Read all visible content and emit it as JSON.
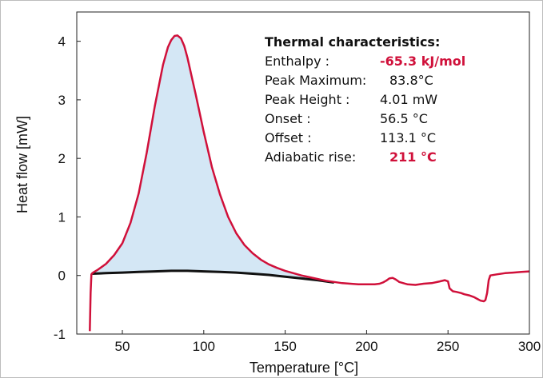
{
  "chart_data": {
    "type": "line",
    "title": "",
    "xlabel": "Temperature [°C]",
    "ylabel": "Heat flow [mW]",
    "xlim": [
      22,
      300
    ],
    "ylim": [
      -1,
      4.5
    ],
    "xticks": [
      50,
      100,
      150,
      200,
      250,
      300
    ],
    "yticks": [
      -1,
      0,
      1,
      2,
      3,
      4
    ],
    "grid": false,
    "colors": {
      "measured": "#d0103a",
      "baseline": "#111111",
      "fill": "#d4e7f5"
    },
    "series": [
      {
        "name": "",
        "role": "measured",
        "x": [
          30,
          30.5,
          31,
          32,
          35,
          40,
          45,
          50,
          55,
          60,
          65,
          70,
          75,
          78,
          80,
          82,
          83.8,
          86,
          88,
          90,
          95,
          100,
          105,
          110,
          115,
          120,
          125,
          130,
          135,
          140,
          145,
          150,
          155,
          160,
          165,
          170,
          175,
          180,
          185,
          190,
          195,
          200,
          205,
          208,
          210,
          212,
          214,
          216,
          218,
          220,
          225,
          230,
          235,
          240,
          245,
          248,
          250,
          251,
          253,
          255,
          258,
          260,
          263,
          266,
          268,
          270,
          272,
          273,
          274,
          275,
          276,
          280,
          285,
          290,
          295,
          300
        ],
        "y": [
          -0.95,
          -0.3,
          0.02,
          0.05,
          0.1,
          0.2,
          0.35,
          0.55,
          0.9,
          1.4,
          2.1,
          2.9,
          3.6,
          3.9,
          4.02,
          4.09,
          4.1,
          4.05,
          3.92,
          3.72,
          3.1,
          2.45,
          1.85,
          1.38,
          1.0,
          0.72,
          0.52,
          0.38,
          0.27,
          0.19,
          0.13,
          0.08,
          0.04,
          0.0,
          -0.03,
          -0.06,
          -0.09,
          -0.11,
          -0.13,
          -0.14,
          -0.15,
          -0.15,
          -0.15,
          -0.14,
          -0.12,
          -0.09,
          -0.05,
          -0.04,
          -0.07,
          -0.11,
          -0.15,
          -0.16,
          -0.14,
          -0.13,
          -0.1,
          -0.08,
          -0.1,
          -0.22,
          -0.27,
          -0.28,
          -0.3,
          -0.32,
          -0.34,
          -0.37,
          -0.4,
          -0.43,
          -0.44,
          -0.42,
          -0.3,
          -0.08,
          0.0,
          0.02,
          0.04,
          0.05,
          0.06,
          0.07
        ]
      },
      {
        "name": "",
        "role": "baseline",
        "x": [
          31,
          40,
          50,
          60,
          70,
          80,
          90,
          100,
          110,
          120,
          130,
          140,
          150,
          160,
          170,
          180
        ],
        "y": [
          0.03,
          0.04,
          0.05,
          0.06,
          0.07,
          0.08,
          0.08,
          0.07,
          0.06,
          0.05,
          0.03,
          0.01,
          -0.02,
          -0.05,
          -0.08,
          -0.12
        ]
      }
    ],
    "integrated_region": {
      "x_from": 31,
      "x_to": 180
    },
    "annotation": {
      "title": "Thermal characteristics:",
      "rows": [
        {
          "label": "Enthalpy :",
          "value": "-65.3 kJ/mol",
          "highlight": true
        },
        {
          "label": "Peak Maximum:",
          "value": "83.8°C",
          "highlight": false
        },
        {
          "label": "Peak Height :",
          "value": "4.01 mW",
          "highlight": false
        },
        {
          "label": "Onset :",
          "value": "56.5 °C",
          "highlight": false
        },
        {
          "label": "Offset :",
          "value": "113.1 °C",
          "highlight": false
        },
        {
          "label": "Adiabatic rise:",
          "value": "211 °C",
          "highlight": true
        }
      ]
    }
  }
}
